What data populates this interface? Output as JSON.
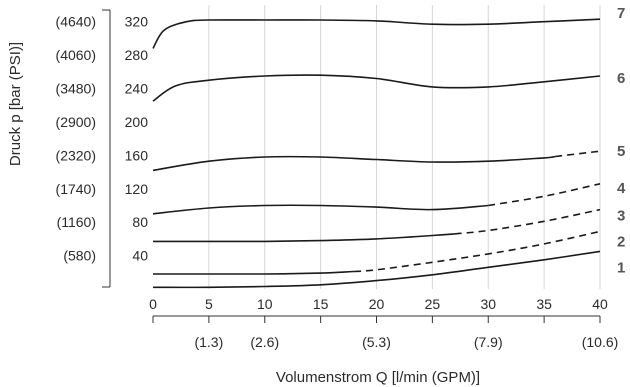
{
  "chart_data": {
    "type": "line",
    "title": "",
    "xlabel": "Volumenstrom Q [l/min (GPM)]",
    "ylabel": "Druck p [bar (PSI)]",
    "xlim": [
      0,
      40
    ],
    "ylim": [
      0,
      340
    ],
    "grid": "vertical",
    "x_ticks": [
      "0",
      "5",
      "10",
      "15",
      "20",
      "25",
      "30",
      "35",
      "40"
    ],
    "x_secondary_ticks": [
      {
        "x": 5,
        "label": "(1.3)"
      },
      {
        "x": 10,
        "label": "(2.6)"
      },
      {
        "x": 20,
        "label": "(5.3)"
      },
      {
        "x": 30,
        "label": "(7.9)"
      },
      {
        "x": 40,
        "label": "(10.6)"
      }
    ],
    "y_ticks": [
      {
        "y": 40,
        "bar": "40",
        "psi": "(580)"
      },
      {
        "y": 80,
        "bar": "80",
        "psi": "(1160)"
      },
      {
        "y": 120,
        "bar": "120",
        "psi": "(1740)"
      },
      {
        "y": 160,
        "bar": "160",
        "psi": "(2320)"
      },
      {
        "y": 200,
        "bar": "200",
        "psi": "(2900)"
      },
      {
        "y": 240,
        "bar": "240",
        "psi": "(3480)"
      },
      {
        "y": 280,
        "bar": "280",
        "psi": "(4060)"
      },
      {
        "y": 320,
        "bar": "320",
        "psi": "(4640)"
      }
    ],
    "series": [
      {
        "name": "1",
        "x": [
          0,
          5,
          10,
          15,
          20,
          25,
          30,
          35,
          40
        ],
        "y": [
          2,
          2,
          3,
          5,
          10,
          17,
          26,
          35,
          45
        ],
        "dashed_from": null
      },
      {
        "name": "2",
        "x": [
          0,
          5,
          10,
          15,
          18,
          20,
          25,
          30,
          35,
          40
        ],
        "y": [
          18,
          18,
          18,
          19,
          21,
          23,
          32,
          42,
          54,
          69
        ],
        "dashed_from": 18
      },
      {
        "name": "3",
        "x": [
          0,
          5,
          10,
          15,
          20,
          25,
          27,
          30,
          35,
          40
        ],
        "y": [
          57,
          57,
          57,
          58,
          60,
          64,
          66,
          70,
          81,
          95
        ],
        "dashed_from": 27
      },
      {
        "name": "4",
        "x": [
          0,
          5,
          10,
          15,
          20,
          25,
          30,
          35,
          40
        ],
        "y": [
          90,
          97,
          100,
          100,
          98,
          95,
          100,
          111,
          126
        ],
        "dashed_from": 30
      },
      {
        "name": "5",
        "x": [
          0,
          5,
          10,
          15,
          20,
          25,
          30,
          35,
          40
        ],
        "y": [
          142,
          153,
          158,
          158,
          155,
          152,
          153,
          157,
          165
        ],
        "dashed_from": 36
      },
      {
        "name": "6",
        "x": [
          0,
          2,
          5,
          10,
          15,
          20,
          25,
          30,
          35,
          40
        ],
        "y": [
          225,
          243,
          250,
          255,
          256,
          252,
          242,
          242,
          248,
          255
        ],
        "dashed_from": null
      },
      {
        "name": "7",
        "x": [
          0,
          1,
          3,
          5,
          10,
          15,
          20,
          25,
          30,
          35,
          40
        ],
        "y": [
          288,
          310,
          320,
          322,
          322,
          322,
          321,
          317,
          317,
          320,
          323
        ],
        "dashed_from": null
      }
    ]
  }
}
